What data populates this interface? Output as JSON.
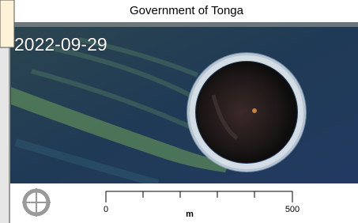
{
  "header": {
    "title": "Government of Tonga"
  },
  "image": {
    "date": "2022-09-29"
  },
  "scale_bar": {
    "start": "0",
    "unit": "m",
    "end": "500"
  }
}
